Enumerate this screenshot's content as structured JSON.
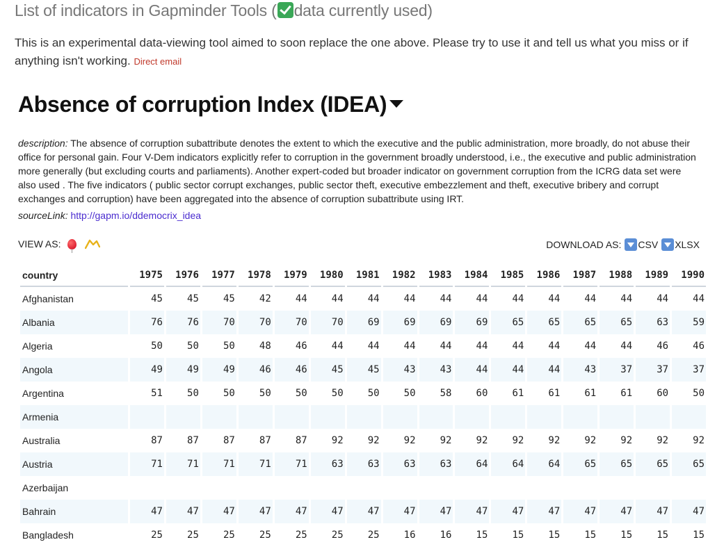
{
  "header": {
    "title_before": "List of indicators in Gapminder Tools (",
    "title_after": "data currently used)",
    "intro_text": "This is an experimental data-viewing tool aimed to soon replace the one above. Please try to use it and tell us what you miss or if anything isn't working.",
    "email_link": "Direct email"
  },
  "indicator": {
    "title": "Absence of corruption Index (IDEA)",
    "description_label": "description:",
    "description": "The absence of corruption subattribute denotes the extent to which the executive and the public administration, more broadly, do not abuse their office for personal gain. Four V-Dem indicators explicitly refer to corruption in the government broadly understood, i.e., the executive and public administration more generally (but excluding courts and parliaments). Another expert-coded but broader indicator on government corruption from the ICRG data set were also used . The five indicators ( public sector corrupt exchanges, public sector theft, executive embezzlement and theft, executive bribery and corrupt exchanges and corruption) have been aggregated into the absence of corruption subattribute using IRT.",
    "source_label": "sourceLink:",
    "source_link": "http://gapm.io/ddemocrix_idea"
  },
  "view_as": {
    "label": "VIEW AS:",
    "icons": [
      "balloon-icon",
      "line-chart-icon"
    ]
  },
  "download": {
    "label": "DOWNLOAD AS:",
    "csv": "CSV",
    "xlsx": "XLSX"
  },
  "table": {
    "country_header": "country",
    "years": [
      "1975",
      "1976",
      "1977",
      "1978",
      "1979",
      "1980",
      "1981",
      "1982",
      "1983",
      "1984",
      "1985",
      "1986",
      "1987",
      "1988",
      "1989",
      "1990"
    ],
    "rows": [
      {
        "country": "Afghanistan",
        "values": [
          "45",
          "45",
          "45",
          "42",
          "44",
          "44",
          "44",
          "44",
          "44",
          "44",
          "44",
          "44",
          "44",
          "44",
          "44",
          "44"
        ]
      },
      {
        "country": "Albania",
        "values": [
          "76",
          "76",
          "70",
          "70",
          "70",
          "70",
          "69",
          "69",
          "69",
          "69",
          "65",
          "65",
          "65",
          "65",
          "63",
          "59"
        ]
      },
      {
        "country": "Algeria",
        "values": [
          "50",
          "50",
          "50",
          "48",
          "46",
          "44",
          "44",
          "44",
          "44",
          "44",
          "44",
          "44",
          "44",
          "44",
          "46",
          "46"
        ]
      },
      {
        "country": "Angola",
        "values": [
          "49",
          "49",
          "49",
          "46",
          "46",
          "45",
          "45",
          "43",
          "43",
          "44",
          "44",
          "44",
          "43",
          "37",
          "37",
          "37"
        ]
      },
      {
        "country": "Argentina",
        "values": [
          "51",
          "50",
          "50",
          "50",
          "50",
          "50",
          "50",
          "50",
          "58",
          "60",
          "61",
          "61",
          "61",
          "61",
          "60",
          "50"
        ]
      },
      {
        "country": "Armenia",
        "values": [
          "",
          "",
          "",
          "",
          "",
          "",
          "",
          "",
          "",
          "",
          "",
          "",
          "",
          "",
          "",
          ""
        ]
      },
      {
        "country": "Australia",
        "values": [
          "87",
          "87",
          "87",
          "87",
          "87",
          "92",
          "92",
          "92",
          "92",
          "92",
          "92",
          "92",
          "92",
          "92",
          "92",
          "92"
        ]
      },
      {
        "country": "Austria",
        "values": [
          "71",
          "71",
          "71",
          "71",
          "71",
          "63",
          "63",
          "63",
          "63",
          "64",
          "64",
          "64",
          "65",
          "65",
          "65",
          "65"
        ]
      },
      {
        "country": "Azerbaijan",
        "values": [
          "",
          "",
          "",
          "",
          "",
          "",
          "",
          "",
          "",
          "",
          "",
          "",
          "",
          "",
          "",
          ""
        ]
      },
      {
        "country": "Bahrain",
        "values": [
          "47",
          "47",
          "47",
          "47",
          "47",
          "47",
          "47",
          "47",
          "47",
          "47",
          "47",
          "47",
          "47",
          "47",
          "47",
          "47"
        ]
      },
      {
        "country": "Bangladesh",
        "values": [
          "25",
          "25",
          "25",
          "25",
          "25",
          "25",
          "25",
          "16",
          "16",
          "15",
          "15",
          "15",
          "15",
          "15",
          "15",
          "15"
        ]
      }
    ]
  }
}
